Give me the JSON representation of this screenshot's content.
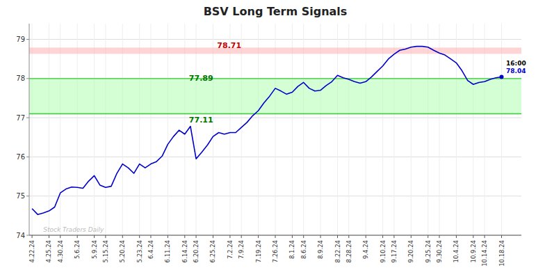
{
  "chart_data": {
    "type": "line",
    "title": "BSV Long Term Signals",
    "categories": [
      "4.22.24",
      null,
      null,
      "4.25.24",
      null,
      "4.30.24",
      null,
      null,
      "5.6.24",
      null,
      null,
      "5.9.24",
      null,
      "5.15.24",
      null,
      null,
      "5.20.24",
      null,
      null,
      "5.23.24",
      null,
      "6.4.24",
      null,
      null,
      "6.11.24",
      null,
      null,
      "6.14.24",
      null,
      "6.20.24",
      null,
      null,
      "6.25.24",
      null,
      null,
      "7.2.24",
      null,
      "7.9.24",
      null,
      null,
      "7.19.24",
      null,
      null,
      "7.26.24",
      null,
      null,
      "8.1.24",
      null,
      "8.6.24",
      null,
      null,
      "8.9.24",
      null,
      null,
      "8.22.24",
      null,
      "8.28.24",
      null,
      null,
      "9.4.24",
      null,
      null,
      "9.10.24",
      null,
      "9.17.24",
      null,
      null,
      "9.20.24",
      null,
      null,
      "9.25.24",
      null,
      "9.30.24",
      null,
      null,
      "10.4.24",
      null,
      null,
      "10.9.24",
      null,
      "10.14.24",
      null,
      null,
      "10.18.24"
    ],
    "values": [
      74.68,
      74.53,
      74.57,
      74.62,
      74.72,
      75.08,
      75.18,
      75.23,
      75.22,
      75.2,
      75.38,
      75.52,
      75.28,
      75.22,
      75.25,
      75.58,
      75.82,
      75.72,
      75.58,
      75.82,
      75.72,
      75.82,
      75.88,
      76.02,
      76.32,
      76.52,
      76.68,
      76.58,
      76.78,
      75.95,
      76.12,
      76.3,
      76.52,
      76.62,
      76.58,
      76.62,
      76.62,
      76.75,
      76.88,
      77.05,
      77.18,
      77.38,
      77.55,
      77.75,
      77.68,
      77.6,
      77.65,
      77.8,
      77.9,
      77.75,
      77.68,
      77.7,
      77.82,
      77.92,
      78.08,
      78.02,
      77.98,
      77.92,
      77.88,
      77.92,
      78.04,
      78.18,
      78.32,
      78.5,
      78.62,
      78.72,
      78.75,
      78.8,
      78.82,
      78.82,
      78.8,
      78.72,
      78.65,
      78.6,
      78.5,
      78.4,
      78.2,
      77.95,
      77.85,
      77.9,
      77.92,
      77.98,
      78.02,
      78.04
    ],
    "color": "#0000cc",
    "ylim": [
      74,
      79.4
    ],
    "yticks": [
      74,
      75,
      76,
      77,
      78,
      79
    ],
    "grid": true,
    "bands": [
      {
        "from": 78.63,
        "to": 78.79,
        "color": "#ffaaaa"
      },
      {
        "from": 77.1,
        "to": 78.0,
        "color": "#aaffaa"
      }
    ],
    "lines": [
      {
        "y": 78.0,
        "color": "#33cc33"
      },
      {
        "y": 77.1,
        "color": "#33cc33"
      }
    ],
    "annotations": [
      {
        "text": "78.71",
        "y": 78.71,
        "color": "#cc0000"
      },
      {
        "text": "77.89",
        "y": 77.89,
        "color": "#007700"
      },
      {
        "text": "77.11",
        "y": 77.11,
        "color": "#007700"
      },
      {
        "text": "16:00",
        "color": "#000000"
      },
      {
        "text": "78.04",
        "y": 78.04,
        "color": "#0000cc"
      },
      {
        "text": "Stock Traders Daily",
        "color": "#bbbbbb"
      }
    ]
  }
}
